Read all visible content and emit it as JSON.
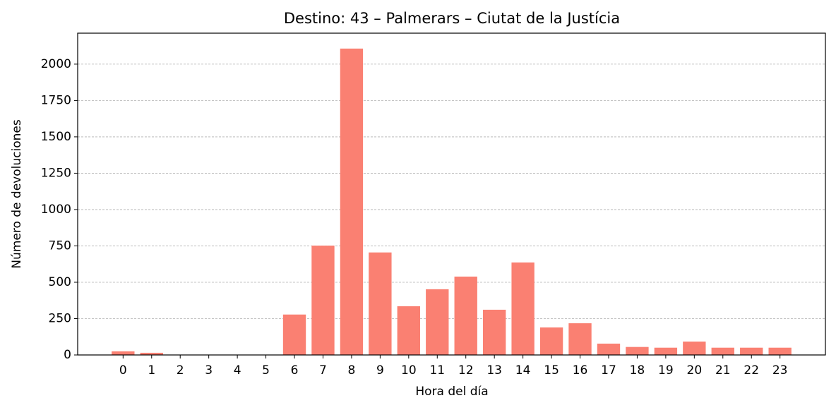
{
  "chart_data": {
    "type": "bar",
    "title": "Destino: 43 – Palmerars – Ciutat de la Justícia",
    "xlabel": "Hora del día",
    "ylabel": "Número de devoluciones",
    "x": [
      0,
      1,
      2,
      3,
      4,
      5,
      6,
      7,
      8,
      9,
      10,
      11,
      12,
      13,
      14,
      15,
      16,
      17,
      18,
      19,
      20,
      21,
      22,
      23
    ],
    "values": [
      25,
      15,
      0,
      0,
      0,
      0,
      278,
      752,
      2107,
      705,
      335,
      452,
      539,
      311,
      636,
      189,
      218,
      78,
      55,
      50,
      92,
      50,
      50,
      50
    ],
    "color": "#fa8072",
    "xlim": [
      -1.59,
      24.59
    ],
    "xticks": [
      0,
      1,
      2,
      3,
      4,
      5,
      6,
      7,
      8,
      9,
      10,
      11,
      12,
      13,
      14,
      15,
      16,
      17,
      18,
      19,
      20,
      21,
      22,
      23
    ],
    "ylim": [
      0,
      2213
    ],
    "yticks": [
      0,
      250,
      500,
      750,
      1000,
      1250,
      1500,
      1750,
      2000
    ],
    "grid": true
  }
}
